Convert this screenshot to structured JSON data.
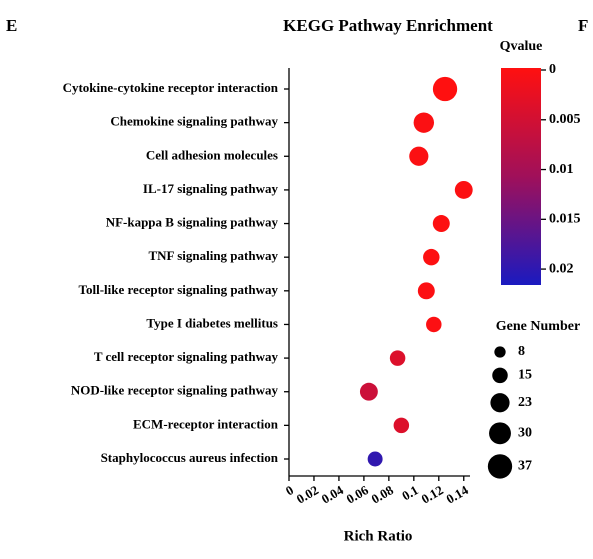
{
  "panel_left": "E",
  "panel_right": "F",
  "chart_data": {
    "type": "bubble",
    "title": "KEGG Pathway Enrichment",
    "x_label": "Rich Ratio",
    "categories": [
      "Cytokine-cytokine receptor interaction",
      "Chemokine signaling pathway",
      "Cell adhesion molecules",
      "IL-17 signaling pathway",
      "NF-kappa B signaling pathway",
      "TNF signaling pathway",
      "Toll-like receptor signaling pathway",
      "Type I diabetes mellitus",
      "T cell receptor signaling pathway",
      "NOD-like receptor signaling pathway",
      "ECM-receptor interaction",
      "Staphylococcus aureus infection"
    ],
    "category_colors": [
      "#000000",
      "#000000",
      "#000000",
      "#d42a2a",
      "#000000",
      "#000000",
      "#000000",
      "#000000",
      "#000000",
      "#000000",
      "#000000",
      "#000000"
    ],
    "x": [
      0.125,
      0.108,
      0.104,
      0.14,
      0.122,
      0.114,
      0.11,
      0.116,
      0.087,
      0.064,
      0.09,
      0.069
    ],
    "sizes": [
      37,
      26,
      23,
      20,
      18,
      17,
      18,
      15,
      15,
      20,
      15,
      14
    ],
    "qvalues": [
      0,
      0.0005,
      0.0005,
      0.0003,
      0.0002,
      0.0002,
      0.0004,
      0.0004,
      0.004,
      0.006,
      0.004,
      0.02
    ],
    "xlim": [
      0,
      0.145
    ],
    "xticks": [
      0,
      0.02,
      0.04,
      0.06,
      0.08,
      0.1,
      0.12,
      0.14
    ],
    "color_title": "Qvalue",
    "qlim": [
      0,
      0.0218
    ],
    "qticks": [
      0,
      0.005,
      0.01,
      0.015,
      0.02
    ],
    "colorscale": [
      "#ff1010",
      "#a0105a",
      "#1a1ac0"
    ],
    "size_title": "Gene Number",
    "size_legend": [
      8,
      15,
      23,
      30,
      37
    ],
    "marker_color": "#000000"
  }
}
